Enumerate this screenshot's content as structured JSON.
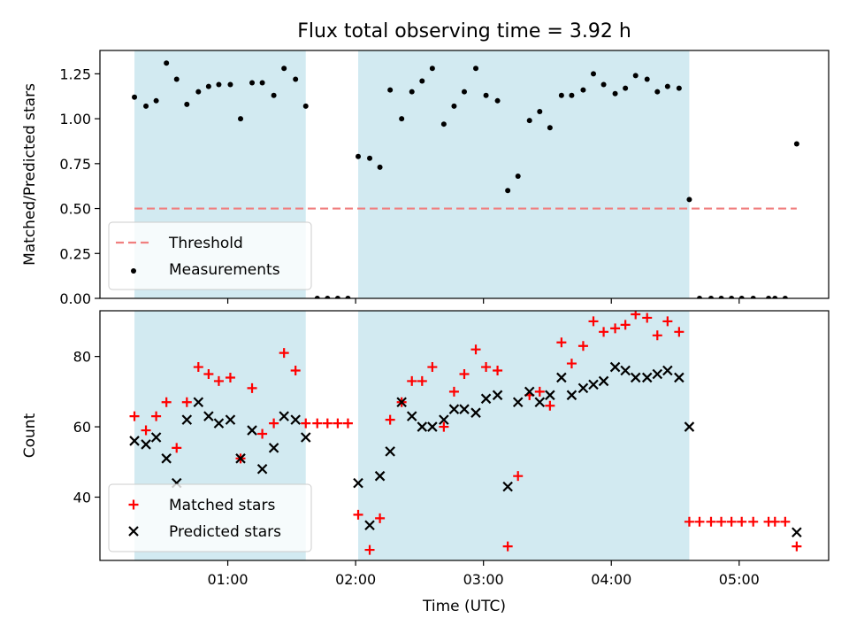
{
  "chart_data": {
    "type": "scatter",
    "title": "Flux total observing time = 3.92 h",
    "xlabel": "Time (UTC)",
    "xlim": [
      0.0,
      5.7
    ],
    "xticks": [
      {
        "value": 1,
        "label": "01:00"
      },
      {
        "value": 2,
        "label": "02:00"
      },
      {
        "value": 3,
        "label": "03:00"
      },
      {
        "value": 4,
        "label": "04:00"
      },
      {
        "value": 5,
        "label": "05:00"
      }
    ],
    "shaded_intervals": [
      [
        0.27,
        1.61
      ],
      [
        2.02,
        4.61
      ]
    ],
    "panels": [
      {
        "ylabel": "Matched/Predicted stars",
        "ylim": [
          0,
          1.38
        ],
        "yticks": [
          "0.00",
          "0.25",
          "0.50",
          "0.75",
          "1.00",
          "1.25"
        ],
        "legend_position": "lower-left",
        "threshold": {
          "name": "Threshold",
          "y": 0.5,
          "x_start": 0.27,
          "x_end": 5.45,
          "color": "#f07f7f"
        },
        "series": [
          {
            "name": "Measurements",
            "marker": "dot",
            "color": "#000000",
            "points": [
              [
                0.27,
                1.12
              ],
              [
                0.36,
                1.07
              ],
              [
                0.44,
                1.1
              ],
              [
                0.52,
                1.31
              ],
              [
                0.6,
                1.22
              ],
              [
                0.68,
                1.08
              ],
              [
                0.77,
                1.15
              ],
              [
                0.85,
                1.18
              ],
              [
                0.93,
                1.19
              ],
              [
                1.02,
                1.19
              ],
              [
                1.1,
                1.0
              ],
              [
                1.19,
                1.2
              ],
              [
                1.27,
                1.2
              ],
              [
                1.36,
                1.13
              ],
              [
                1.44,
                1.28
              ],
              [
                1.53,
                1.22
              ],
              [
                1.61,
                1.07
              ],
              [
                1.7,
                0.0
              ],
              [
                1.78,
                0.0
              ],
              [
                1.86,
                0.0
              ],
              [
                1.94,
                0.0
              ],
              [
                2.02,
                0.79
              ],
              [
                2.11,
                0.78
              ],
              [
                2.19,
                0.73
              ],
              [
                2.27,
                1.16
              ],
              [
                2.36,
                1.0
              ],
              [
                2.44,
                1.15
              ],
              [
                2.52,
                1.21
              ],
              [
                2.6,
                1.28
              ],
              [
                2.69,
                0.97
              ],
              [
                2.77,
                1.07
              ],
              [
                2.85,
                1.15
              ],
              [
                2.94,
                1.28
              ],
              [
                3.02,
                1.13
              ],
              [
                3.11,
                1.1
              ],
              [
                3.19,
                0.6
              ],
              [
                3.27,
                0.68
              ],
              [
                3.36,
                0.99
              ],
              [
                3.44,
                1.04
              ],
              [
                3.52,
                0.95
              ],
              [
                3.61,
                1.13
              ],
              [
                3.69,
                1.13
              ],
              [
                3.78,
                1.16
              ],
              [
                3.86,
                1.25
              ],
              [
                3.94,
                1.19
              ],
              [
                4.03,
                1.14
              ],
              [
                4.11,
                1.17
              ],
              [
                4.19,
                1.24
              ],
              [
                4.28,
                1.22
              ],
              [
                4.36,
                1.15
              ],
              [
                4.44,
                1.18
              ],
              [
                4.53,
                1.17
              ],
              [
                4.61,
                0.55
              ],
              [
                4.69,
                0.0
              ],
              [
                4.78,
                0.0
              ],
              [
                4.86,
                0.0
              ],
              [
                4.94,
                0.0
              ],
              [
                5.02,
                0.0
              ],
              [
                5.11,
                0.0
              ],
              [
                5.23,
                0.0
              ],
              [
                5.28,
                0.0
              ],
              [
                5.36,
                0.0
              ],
              [
                5.45,
                0.86
              ]
            ]
          }
        ]
      },
      {
        "ylabel": "Count",
        "ylim": [
          22,
          93
        ],
        "yticks": [
          "40",
          "60",
          "80"
        ],
        "legend_position": "lower-left",
        "series": [
          {
            "name": "Matched stars",
            "marker": "plus",
            "color": "#ff0000",
            "points": [
              [
                0.27,
                63
              ],
              [
                0.36,
                59
              ],
              [
                0.44,
                63
              ],
              [
                0.52,
                67
              ],
              [
                0.6,
                54
              ],
              [
                0.68,
                67
              ],
              [
                0.77,
                77
              ],
              [
                0.85,
                75
              ],
              [
                0.93,
                73
              ],
              [
                1.02,
                74
              ],
              [
                1.1,
                51
              ],
              [
                1.19,
                71
              ],
              [
                1.27,
                58
              ],
              [
                1.36,
                61
              ],
              [
                1.44,
                81
              ],
              [
                1.53,
                76
              ],
              [
                1.61,
                61
              ],
              [
                1.7,
                61
              ],
              [
                1.78,
                61
              ],
              [
                1.86,
                61
              ],
              [
                1.94,
                61
              ],
              [
                2.02,
                35
              ],
              [
                2.11,
                25
              ],
              [
                2.19,
                34
              ],
              [
                2.27,
                62
              ],
              [
                2.36,
                67
              ],
              [
                2.44,
                73
              ],
              [
                2.52,
                73
              ],
              [
                2.6,
                77
              ],
              [
                2.69,
                60
              ],
              [
                2.77,
                70
              ],
              [
                2.85,
                75
              ],
              [
                2.94,
                82
              ],
              [
                3.02,
                77
              ],
              [
                3.11,
                76
              ],
              [
                3.19,
                26
              ],
              [
                3.27,
                46
              ],
              [
                3.36,
                69
              ],
              [
                3.44,
                70
              ],
              [
                3.52,
                66
              ],
              [
                3.61,
                84
              ],
              [
                3.69,
                78
              ],
              [
                3.78,
                83
              ],
              [
                3.86,
                90
              ],
              [
                3.94,
                87
              ],
              [
                4.03,
                88
              ],
              [
                4.11,
                89
              ],
              [
                4.19,
                92
              ],
              [
                4.28,
                91
              ],
              [
                4.36,
                86
              ],
              [
                4.44,
                90
              ],
              [
                4.53,
                87
              ],
              [
                4.61,
                33
              ],
              [
                4.69,
                33
              ],
              [
                4.78,
                33
              ],
              [
                4.86,
                33
              ],
              [
                4.94,
                33
              ],
              [
                5.02,
                33
              ],
              [
                5.11,
                33
              ],
              [
                5.23,
                33
              ],
              [
                5.28,
                33
              ],
              [
                5.36,
                33
              ],
              [
                5.45,
                26
              ]
            ]
          },
          {
            "name": "Predicted stars",
            "marker": "x",
            "color": "#000000",
            "points": [
              [
                0.27,
                56
              ],
              [
                0.36,
                55
              ],
              [
                0.44,
                57
              ],
              [
                0.52,
                51
              ],
              [
                0.6,
                44
              ],
              [
                0.68,
                62
              ],
              [
                0.77,
                67
              ],
              [
                0.85,
                63
              ],
              [
                0.93,
                61
              ],
              [
                1.02,
                62
              ],
              [
                1.1,
                51
              ],
              [
                1.19,
                59
              ],
              [
                1.27,
                48
              ],
              [
                1.36,
                54
              ],
              [
                1.44,
                63
              ],
              [
                1.53,
                62
              ],
              [
                1.61,
                57
              ],
              [
                2.02,
                44
              ],
              [
                2.11,
                32
              ],
              [
                2.19,
                46
              ],
              [
                2.27,
                53
              ],
              [
                2.36,
                67
              ],
              [
                2.44,
                63
              ],
              [
                2.52,
                60
              ],
              [
                2.6,
                60
              ],
              [
                2.69,
                62
              ],
              [
                2.77,
                65
              ],
              [
                2.85,
                65
              ],
              [
                2.94,
                64
              ],
              [
                3.02,
                68
              ],
              [
                3.11,
                69
              ],
              [
                3.19,
                43
              ],
              [
                3.27,
                67
              ],
              [
                3.36,
                70
              ],
              [
                3.44,
                67
              ],
              [
                3.52,
                69
              ],
              [
                3.61,
                74
              ],
              [
                3.69,
                69
              ],
              [
                3.78,
                71
              ],
              [
                3.86,
                72
              ],
              [
                3.94,
                73
              ],
              [
                4.03,
                77
              ],
              [
                4.11,
                76
              ],
              [
                4.19,
                74
              ],
              [
                4.28,
                74
              ],
              [
                4.36,
                75
              ],
              [
                4.44,
                76
              ],
              [
                4.53,
                74
              ],
              [
                4.61,
                60
              ],
              [
                5.45,
                30
              ]
            ]
          }
        ]
      }
    ],
    "colors": {
      "shade": "#add8e6",
      "shade_opacity": 0.55,
      "frame": "#000000"
    }
  }
}
